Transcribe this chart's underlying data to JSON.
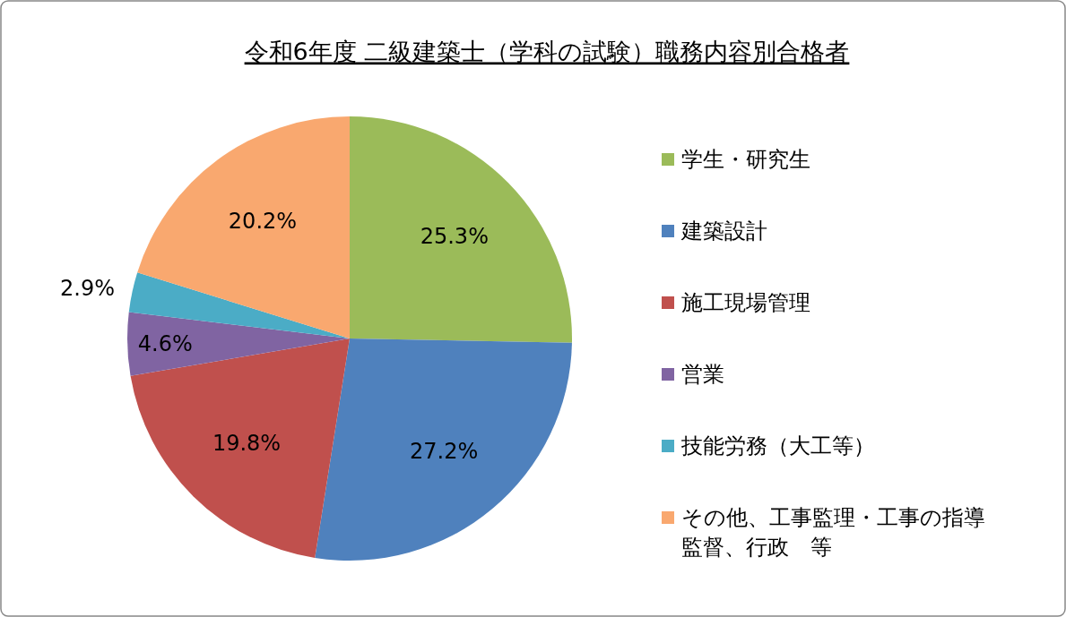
{
  "chart_data": {
    "type": "pie",
    "title": "令和6年度 二級建築士（学科の試験）職務内容別合格者",
    "categories": [
      "学生・研究生",
      "建築設計",
      "施工現場管理",
      "営業",
      "技能労務（大工等）",
      "その他、工事監理・工事の指導監督、行政　等"
    ],
    "values": [
      25.3,
      27.2,
      19.8,
      4.6,
      2.9,
      20.2
    ],
    "colors": [
      "#9bbb59",
      "#4f81bd",
      "#c0504d",
      "#8064a2",
      "#4bacc6",
      "#f9a86f"
    ],
    "value_labels": [
      "25.3%",
      "27.2%",
      "19.8%",
      "4.6%",
      "2.9%",
      "20.2%"
    ],
    "legend": "right"
  }
}
